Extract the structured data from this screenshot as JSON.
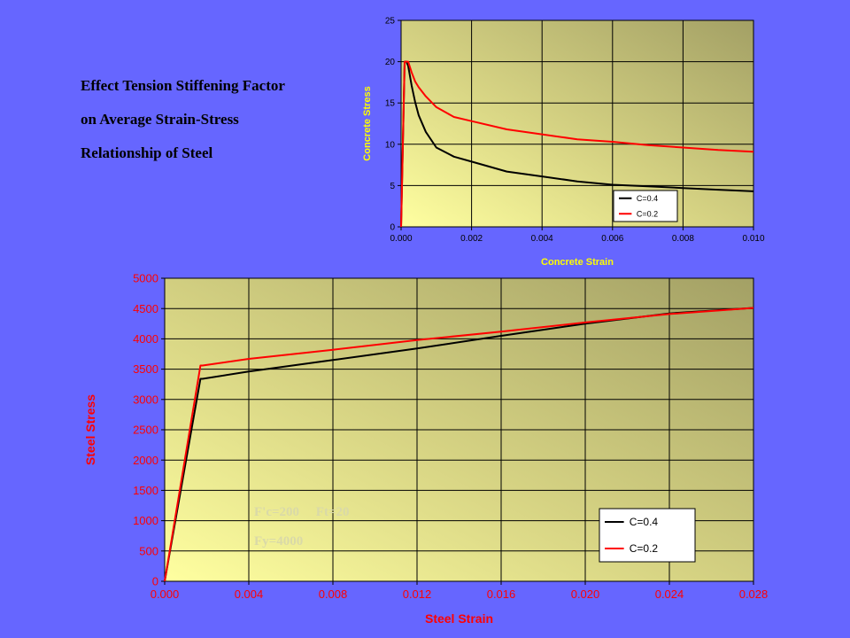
{
  "title_lines": [
    "Effect Tension Stiffening Factor",
    "on Average Strain-Stress",
    "Relationship of Steel"
  ],
  "annotations": {
    "line1": "F'c=200     Ft=20",
    "line2": "Fy=4000"
  },
  "colors": {
    "background": "#6666ff",
    "series_c04": "#000000",
    "series_c02": "#ff0000",
    "top_axis_text": "#ffff00",
    "bottom_axis_text": "#ff0000",
    "annotation_text": "#d9d9a8"
  },
  "chart_data": [
    {
      "id": "concrete",
      "type": "line",
      "xlabel": "Concrete Strain",
      "ylabel": "Concrete Stress",
      "xlim": [
        0,
        0.01
      ],
      "ylim": [
        0,
        25
      ],
      "xticks": [
        "0.000",
        "0.002",
        "0.004",
        "0.006",
        "0.008",
        "0.010"
      ],
      "yticks": [
        "0",
        "5",
        "10",
        "15",
        "20",
        "25"
      ],
      "grid": true,
      "legend": "bottom-right",
      "series": [
        {
          "name": "C=0.4",
          "color": "#000000",
          "x": [
            0,
            0.0001,
            0.00015,
            0.0002,
            0.0003,
            0.0004,
            0.0005,
            0.0007,
            0.001,
            0.0015,
            0.002,
            0.003,
            0.004,
            0.005,
            0.006,
            0.007,
            0.008,
            0.009,
            0.01
          ],
          "y": [
            0,
            20,
            20,
            19.5,
            17.1,
            15.1,
            13.5,
            11.5,
            9.6,
            8.5,
            7.9,
            6.7,
            6.1,
            5.5,
            5.1,
            4.9,
            4.7,
            4.5,
            4.3
          ]
        },
        {
          "name": "C=0.2",
          "color": "#ff0000",
          "x": [
            0,
            0.0001,
            0.00015,
            0.0002,
            0.0003,
            0.0004,
            0.0005,
            0.0007,
            0.001,
            0.0015,
            0.002,
            0.003,
            0.004,
            0.005,
            0.006,
            0.007,
            0.008,
            0.009,
            0.01
          ],
          "y": [
            0,
            20,
            20,
            20,
            18.7,
            17.6,
            16.9,
            15.8,
            14.5,
            13.3,
            12.8,
            11.8,
            11.2,
            10.6,
            10.3,
            9.9,
            9.6,
            9.3,
            9.1
          ]
        }
      ]
    },
    {
      "id": "steel",
      "type": "line",
      "xlabel": "Steel Strain",
      "ylabel": "Steel Stress",
      "xlim": [
        0,
        0.028
      ],
      "ylim": [
        0,
        5000
      ],
      "xticks": [
        "0.000",
        "0.004",
        "0.008",
        "0.012",
        "0.016",
        "0.020",
        "0.024",
        "0.028"
      ],
      "yticks": [
        "0",
        "500",
        "1000",
        "1500",
        "2000",
        "2500",
        "3000",
        "3500",
        "4000",
        "4500",
        "5000"
      ],
      "grid": true,
      "legend": "bottom-right",
      "series": [
        {
          "name": "C=0.4",
          "color": "#000000",
          "x": [
            0,
            0.0017,
            0.0018,
            0.004,
            0.008,
            0.012,
            0.016,
            0.02,
            0.024,
            0.028
          ],
          "y": [
            0,
            3340,
            3340,
            3460,
            3650,
            3840,
            4050,
            4250,
            4420,
            4510
          ]
        },
        {
          "name": "C=0.2",
          "color": "#ff0000",
          "x": [
            0,
            0.0017,
            0.0018,
            0.004,
            0.008,
            0.012,
            0.016,
            0.02,
            0.024,
            0.028
          ],
          "y": [
            0,
            3560,
            3560,
            3670,
            3820,
            3980,
            4120,
            4270,
            4410,
            4510
          ]
        }
      ]
    }
  ]
}
